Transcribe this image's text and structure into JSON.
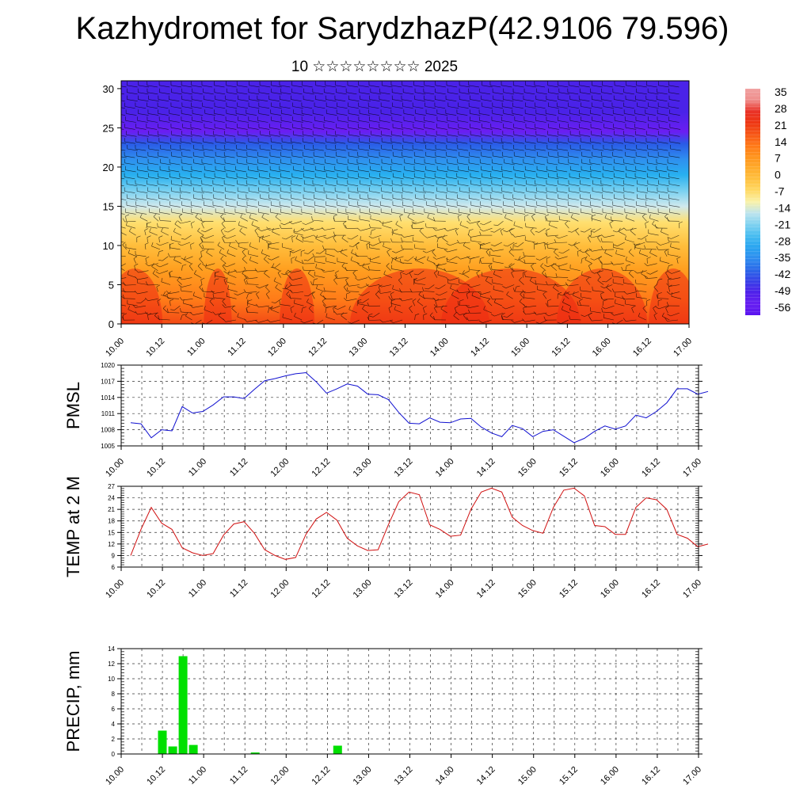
{
  "header": {
    "title": "Kazhydromet for SarydzhazP(42.9106 79.596)",
    "subtitle": "10 ☆☆☆☆☆☆☆☆ 2025"
  },
  "colors": {
    "pmsl_line": "#1010d0",
    "temp_line": "#d01010",
    "precip_bar": "#00e000",
    "wind_barb": "#000000"
  },
  "chart_data": [
    {
      "type": "heatmap",
      "name": "vertical-section",
      "title": "",
      "xlabel": "",
      "ylabel": "",
      "x_ticks": [
        "10.00",
        "10.12",
        "11.00",
        "11.12",
        "12.00",
        "12.12",
        "13.00",
        "13.12",
        "14.00",
        "14.12",
        "15.00",
        "15.12",
        "16.00",
        "16.12",
        "17.00"
      ],
      "y_ticks": [
        0,
        5,
        10,
        15,
        20,
        25,
        30
      ],
      "ylim": [
        0,
        31
      ],
      "colorbar_ticks": [
        "35",
        "28",
        "21",
        "14",
        "7",
        "0",
        "-7",
        "-14",
        "-21",
        "-28",
        "-35",
        "-42",
        "-49",
        "-56"
      ],
      "temperature_profile": [
        {
          "level": 0,
          "value": 21
        },
        {
          "level": 3,
          "value": 14
        },
        {
          "level": 7,
          "value": 7
        },
        {
          "level": 10,
          "value": 0
        },
        {
          "level": 13,
          "value": -7
        },
        {
          "level": 15,
          "value": -14
        },
        {
          "level": 17,
          "value": -21
        },
        {
          "level": 19,
          "value": -28
        },
        {
          "level": 21,
          "value": -35
        },
        {
          "level": 23,
          "value": -42
        },
        {
          "level": 24.5,
          "value": -56
        },
        {
          "level": 27,
          "value": -49
        },
        {
          "level": 31,
          "value": -49
        }
      ],
      "grid": false,
      "wind_barbs": true
    },
    {
      "type": "line",
      "name": "pmsl",
      "ylabel": "PMSL",
      "ylim": [
        1005,
        1020
      ],
      "y_ticks": [
        1005,
        1008,
        1011,
        1014,
        1017,
        1020
      ],
      "x_ticks": [
        "10.00",
        "10.12",
        "11.00",
        "11.12",
        "12.00",
        "12.12",
        "13.00",
        "13.12",
        "14.00",
        "14.12",
        "15.00",
        "15.12",
        "16.00",
        "16.12",
        "17.00"
      ],
      "x_step_hours": 3,
      "values": [
        1009.3,
        1009.1,
        1006.5,
        1008,
        1007.8,
        1012.3,
        1011.1,
        1011.4,
        1012.6,
        1014.1,
        1014.1,
        1013.8,
        1015.5,
        1017.1,
        1017.5,
        1018.0,
        1018.4,
        1018.6,
        1016.9,
        1014.8,
        1015.6,
        1016.5,
        1016.1,
        1014.6,
        1014.5,
        1013.6,
        1011.2,
        1009.2,
        1009.1,
        1010.2,
        1009.4,
        1009.3,
        1010.0,
        1010.1,
        1008.5,
        1007.4,
        1006.7,
        1008.8,
        1008.2,
        1006.7,
        1007.7,
        1008.0,
        1006.8,
        1005.6,
        1006.4,
        1007.7,
        1008.7,
        1008.1,
        1008.7,
        1010.7,
        1010.2,
        1011.4,
        1013.0,
        1015.6,
        1015.6,
        1014.6,
        1015.1
      ],
      "grid": true
    },
    {
      "type": "line",
      "name": "temp",
      "ylabel": "TEMP at 2 M",
      "ylim": [
        6,
        27
      ],
      "y_ticks": [
        6,
        9,
        12,
        15,
        18,
        21,
        24,
        27
      ],
      "x_ticks": [
        "10.00",
        "10.12",
        "11.00",
        "11.12",
        "12.00",
        "12.12",
        "13.00",
        "13.12",
        "14.00",
        "14.12",
        "15.00",
        "15.12",
        "16.00",
        "16.12",
        "17.00"
      ],
      "x_step_hours": 3,
      "values": [
        9.0,
        15.8,
        21.5,
        17.4,
        15.8,
        11.0,
        9.7,
        9.0,
        9.5,
        14.3,
        17.2,
        17.8,
        14.8,
        10.5,
        9.0,
        8.0,
        8.5,
        14.5,
        18.5,
        20.2,
        18.2,
        13.5,
        11.5,
        10.3,
        10.5,
        17.0,
        23.0,
        25.5,
        24.8,
        17.0,
        15.8,
        14.0,
        14.3,
        21.0,
        25.5,
        26.5,
        25.5,
        19.0,
        16.8,
        15.5,
        14.8,
        21.5,
        26.0,
        26.5,
        24.5,
        16.8,
        16.5,
        14.5,
        14.5,
        21.5,
        24.0,
        23.5,
        21.0,
        14.5,
        13.5,
        11.3,
        12.0
      ],
      "grid": true
    },
    {
      "type": "bar",
      "name": "precip",
      "ylabel": "PRECIP, mm",
      "ylim": [
        0,
        14
      ],
      "y_ticks": [
        0,
        2,
        4,
        6,
        8,
        10,
        12,
        14
      ],
      "x_ticks": [
        "10.00",
        "10.12",
        "11.00",
        "11.12",
        "12.00",
        "12.12",
        "13.00",
        "13.12",
        "14.00",
        "14.12",
        "15.00",
        "15.12",
        "16.00",
        "16.12",
        "17.00"
      ],
      "x_step_hours": 3,
      "bars": [
        {
          "index": 3,
          "value": 3.1
        },
        {
          "index": 4,
          "value": 1.0
        },
        {
          "index": 5,
          "value": 13.0
        },
        {
          "index": 6,
          "value": 1.2
        },
        {
          "index": 12,
          "value": 0.2
        },
        {
          "index": 20,
          "value": 1.1
        }
      ],
      "grid": true
    }
  ]
}
